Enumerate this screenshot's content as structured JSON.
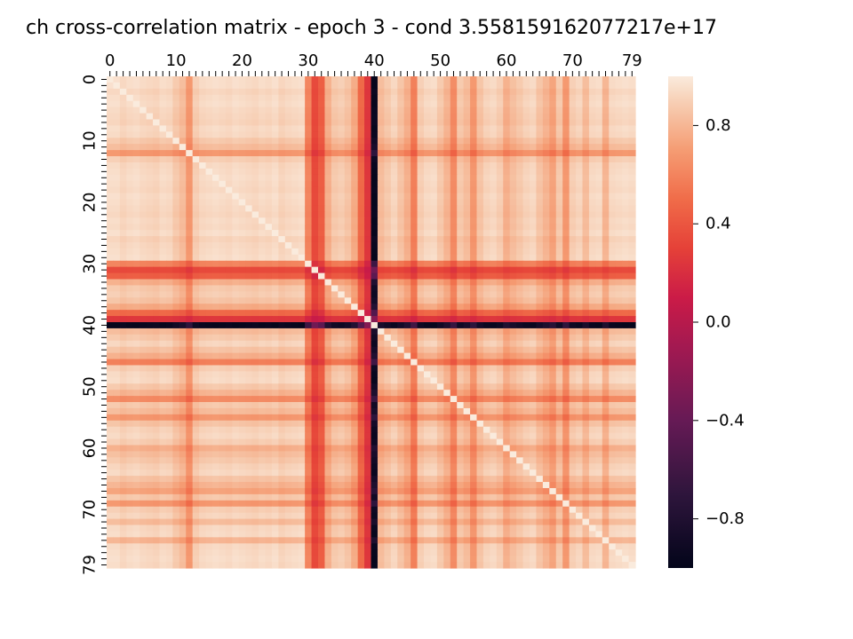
{
  "chart_data": {
    "type": "heatmap",
    "title": "ch cross-correlation matrix - epoch 3 - cond 3.558159162077217e+17",
    "size": 80,
    "x_tick_labels": [
      "0",
      "10",
      "20",
      "30",
      "40",
      "50",
      "60",
      "70",
      "79"
    ],
    "x_tick_values": [
      0,
      10,
      20,
      30,
      40,
      50,
      60,
      70,
      79
    ],
    "y_tick_labels": [
      "0",
      "10",
      "20",
      "30",
      "40",
      "50",
      "60",
      "70",
      "79"
    ],
    "y_tick_values": [
      0,
      10,
      20,
      30,
      40,
      50,
      60,
      70,
      79
    ],
    "colorbar": {
      "vmin": -1.0,
      "vmax": 1.0,
      "tick_labels": [
        "0.8",
        "0.4",
        "0.0",
        "−0.4",
        "−0.8"
      ],
      "tick_values": [
        0.8,
        0.4,
        0.0,
        -0.4,
        -0.8
      ],
      "colormap": "rocket"
    },
    "channel_profile": [
      0.98,
      0.98,
      0.95,
      0.97,
      0.98,
      0.96,
      0.95,
      0.94,
      0.97,
      0.96,
      0.9,
      0.85,
      0.7,
      0.92,
      0.96,
      0.97,
      0.98,
      0.97,
      0.96,
      0.98,
      0.97,
      0.96,
      0.95,
      0.97,
      0.96,
      0.98,
      0.94,
      0.96,
      0.97,
      0.98,
      0.62,
      0.35,
      0.45,
      0.8,
      0.9,
      0.92,
      0.88,
      0.78,
      0.5,
      0.25,
      -1.0,
      0.85,
      0.9,
      0.95,
      0.88,
      0.8,
      0.6,
      0.92,
      0.96,
      0.97,
      0.9,
      0.82,
      0.65,
      0.9,
      0.85,
      0.7,
      0.88,
      0.94,
      0.96,
      0.92,
      0.8,
      0.86,
      0.9,
      0.94,
      0.96,
      0.88,
      0.82,
      0.75,
      0.9,
      0.7,
      0.92,
      0.95,
      0.85,
      0.96,
      0.97,
      0.82,
      0.96,
      0.97,
      0.98,
      0.97
    ]
  }
}
